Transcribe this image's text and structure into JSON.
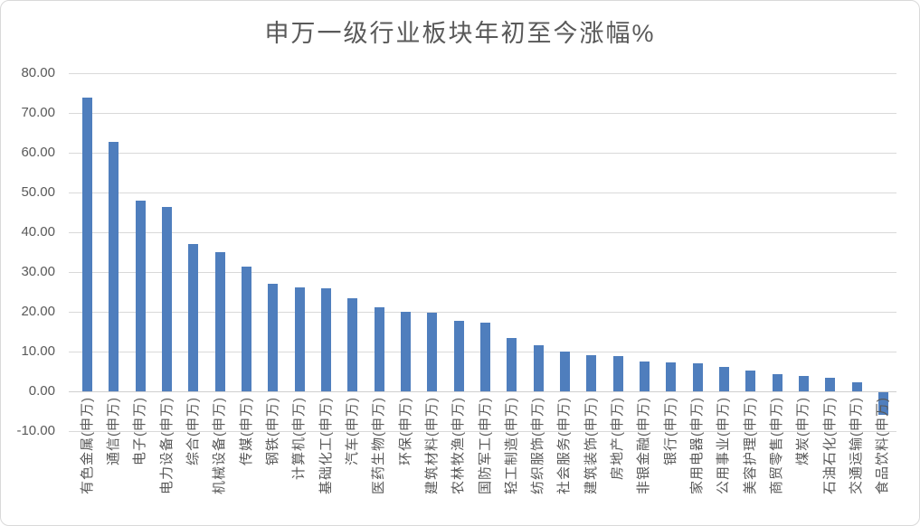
{
  "chart_data": {
    "type": "bar",
    "title": "申万一级行业板块年初至今涨幅%",
    "categories": [
      "有色金属(申万)",
      "通信(申万)",
      "电子(申万)",
      "电力设备(申万)",
      "综合(申万)",
      "机械设备(申万)",
      "传媒(申万)",
      "钢铁(申万)",
      "计算机(申万)",
      "基础化工(申万)",
      "汽车(申万)",
      "医药生物(申万)",
      "环保(申万)",
      "建筑材料(申万)",
      "农林牧渔(申万)",
      "国防军工(申万)",
      "轻工制造(申万)",
      "纺织服饰(申万)",
      "社会服务(申万)",
      "建筑装饰(申万)",
      "房地产(申万)",
      "非银金融(申万)",
      "银行(申万)",
      "家用电器(申万)",
      "公用事业(申万)",
      "美容护理(申万)",
      "商贸零售(申万)",
      "煤炭(申万)",
      "石油石化(申万)",
      "交通运输(申万)",
      "食品饮料(申万)"
    ],
    "values": [
      73.9,
      62.8,
      47.9,
      46.3,
      37.1,
      34.9,
      31.3,
      27.1,
      26.2,
      26.0,
      23.3,
      21.1,
      20.0,
      19.8,
      17.7,
      17.2,
      13.3,
      11.6,
      10.0,
      9.0,
      8.9,
      7.4,
      7.2,
      7.0,
      6.1,
      5.3,
      4.3,
      3.8,
      3.4,
      2.2,
      -5.6
    ],
    "xlabel": "",
    "ylabel": "",
    "ylim": [
      -10,
      80
    ],
    "y_tick_step": 10,
    "y_tick_labels": [
      "80.00",
      "70.00",
      "60.00",
      "50.00",
      "40.00",
      "30.00",
      "20.00",
      "10.00",
      "0.00",
      "-10.00"
    ],
    "grid": true,
    "legend": "none",
    "bar_color": "#4f7ebd",
    "grid_color": "#d9d9d9",
    "text_color": "#595959"
  }
}
